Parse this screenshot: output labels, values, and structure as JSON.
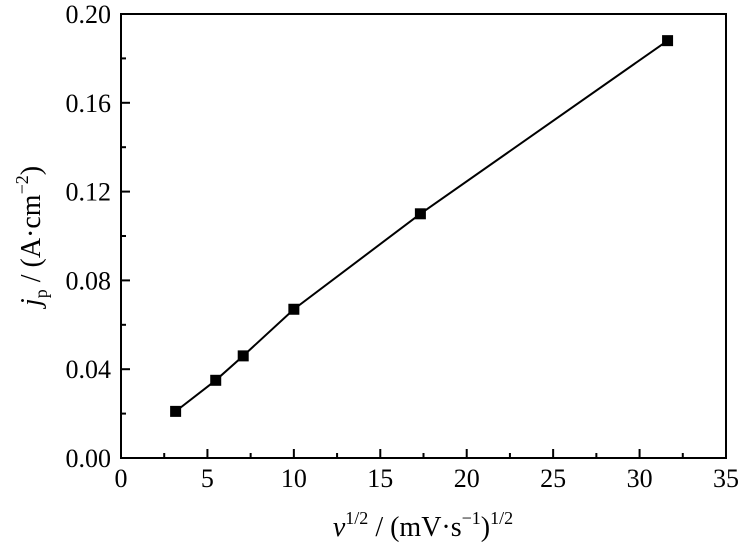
{
  "chart_data": {
    "type": "scatter",
    "title": "",
    "xlim": [
      0,
      35
    ],
    "ylim": [
      0.0,
      0.2
    ],
    "x_ticks": [
      0,
      5,
      10,
      15,
      20,
      25,
      30,
      35
    ],
    "x_tick_labels": [
      "0",
      "5",
      "10",
      "15",
      "20",
      "25",
      "30",
      "35"
    ],
    "y_ticks": [
      0.0,
      0.04,
      0.08,
      0.12,
      0.16,
      0.2
    ],
    "y_tick_labels": [
      "0.00",
      "0.04",
      "0.08",
      "0.12",
      "0.16",
      "0.20"
    ],
    "grid": false,
    "legend": "none",
    "series": [
      {
        "marker": "filled-square",
        "line": "solid",
        "color": "#000000",
        "x": [
          3.16,
          5.48,
          7.07,
          10.0,
          17.32,
          31.62
        ],
        "y": [
          0.021,
          0.035,
          0.046,
          0.067,
          0.11,
          0.188
        ]
      }
    ],
    "xlabel": {
      "v": "v",
      "v_exp": "1/2",
      "sep": " / (mV·s",
      "inner_exp": "−1",
      "close": ")",
      "outer_exp": "1/2"
    },
    "ylabel": {
      "j": "j",
      "j_sub": "p",
      "unit": " / (A·cm",
      "unit_exp": "−2",
      "close": ")"
    }
  }
}
